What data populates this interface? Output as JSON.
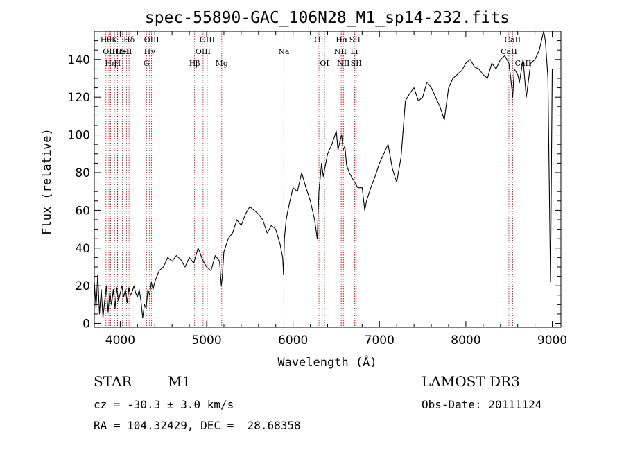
{
  "chart_data": {
    "type": "line",
    "title": "spec-55890-GAC_106N28_M1_sp14-232.fits",
    "xlabel": "Wavelength (Å)",
    "ylabel": "Flux (relative)",
    "xlim": [
      3700,
      9100
    ],
    "ylim": [
      -2,
      155
    ],
    "xticks": [
      4000,
      5000,
      6000,
      7000,
      8000,
      9000
    ],
    "yticks": [
      0,
      20,
      40,
      60,
      80,
      100,
      120,
      140
    ],
    "grid": false,
    "series": [
      {
        "name": "flux",
        "x": [
          3700,
          3720,
          3740,
          3760,
          3780,
          3800,
          3820,
          3840,
          3860,
          3880,
          3900,
          3920,
          3940,
          3960,
          3980,
          4000,
          4020,
          4040,
          4060,
          4080,
          4100,
          4120,
          4140,
          4160,
          4180,
          4200,
          4220,
          4240,
          4260,
          4280,
          4300,
          4320,
          4340,
          4360,
          4380,
          4400,
          4450,
          4500,
          4550,
          4600,
          4650,
          4700,
          4750,
          4800,
          4850,
          4870,
          4900,
          4920,
          4950,
          5000,
          5050,
          5100,
          5150,
          5170,
          5180,
          5200,
          5250,
          5300,
          5350,
          5400,
          5450,
          5500,
          5550,
          5600,
          5650,
          5700,
          5750,
          5800,
          5850,
          5880,
          5890,
          5900,
          5920,
          5950,
          6000,
          6050,
          6100,
          6150,
          6200,
          6250,
          6280,
          6300,
          6330,
          6350,
          6400,
          6450,
          6500,
          6520,
          6550,
          6563,
          6580,
          6600,
          6620,
          6650,
          6700,
          6750,
          6800,
          6830,
          6850,
          6900,
          6950,
          7000,
          7050,
          7100,
          7150,
          7200,
          7250,
          7300,
          7350,
          7400,
          7450,
          7500,
          7550,
          7600,
          7650,
          7700,
          7750,
          7800,
          7850,
          7900,
          7950,
          8000,
          8050,
          8100,
          8150,
          8200,
          8250,
          8300,
          8350,
          8400,
          8450,
          8498,
          8520,
          8542,
          8560,
          8600,
          8620,
          8662,
          8700,
          8750,
          8800,
          8850,
          8900,
          8920,
          8950,
          8980,
          9000
        ],
        "y": [
          22,
          8,
          26,
          5,
          18,
          3,
          12,
          20,
          6,
          16,
          10,
          18,
          8,
          19,
          12,
          16,
          20,
          14,
          18,
          11,
          19,
          15,
          17,
          20,
          16,
          14,
          18,
          12,
          3,
          10,
          8,
          18,
          15,
          22,
          18,
          22,
          28,
          30,
          35,
          33,
          36,
          34,
          30,
          35,
          32,
          35,
          40,
          38,
          34,
          30,
          28,
          36,
          33,
          20,
          24,
          38,
          45,
          48,
          55,
          52,
          58,
          62,
          60,
          58,
          55,
          48,
          52,
          50,
          42,
          35,
          26,
          45,
          55,
          62,
          72,
          70,
          80,
          72,
          65,
          55,
          45,
          70,
          85,
          78,
          90,
          95,
          102,
          92,
          98,
          100,
          92,
          94,
          84,
          80,
          76,
          72,
          72,
          60,
          65,
          72,
          78,
          85,
          90,
          95,
          82,
          75,
          88,
          118,
          122,
          125,
          118,
          120,
          128,
          125,
          120,
          115,
          108,
          125,
          130,
          132,
          134,
          138,
          140,
          136,
          135,
          132,
          130,
          138,
          135,
          140,
          142,
          138,
          130,
          120,
          135,
          132,
          128,
          140,
          120,
          138,
          140,
          145,
          155,
          150,
          130,
          22,
          135
        ]
      }
    ],
    "lines": [
      {
        "wl": 3835,
        "label": "Hθ",
        "row": 0
      },
      {
        "wl": 3869,
        "label": "OII",
        "row": 1
      },
      {
        "wl": 3889,
        "label": "Hη",
        "row": 2
      },
      {
        "wl": 3934,
        "label": "K",
        "row": 0
      },
      {
        "wl": 3968,
        "label": "H",
        "row": 2
      },
      {
        "wl": 3970,
        "label": "Hε",
        "row": 1
      },
      {
        "wl": 4026,
        "label": "HeI",
        "row": 1
      },
      {
        "wl": 4072,
        "label": "SII",
        "row": 1
      },
      {
        "wl": 4102,
        "label": "Hδ",
        "row": 0
      },
      {
        "wl": 4304,
        "label": "G",
        "row": 2
      },
      {
        "wl": 4340,
        "label": "Hγ",
        "row": 1
      },
      {
        "wl": 4363,
        "label": "OIII",
        "row": 0
      },
      {
        "wl": 4861,
        "label": "Hβ",
        "row": 2
      },
      {
        "wl": 4959,
        "label": "OIII",
        "row": 1
      },
      {
        "wl": 5007,
        "label": "OIII",
        "row": 0
      },
      {
        "wl": 5175,
        "label": "Mg",
        "row": 2
      },
      {
        "wl": 5893,
        "label": "Na",
        "row": 1
      },
      {
        "wl": 6300,
        "label": "OI",
        "row": 0
      },
      {
        "wl": 6364,
        "label": "OI",
        "row": 2
      },
      {
        "wl": 6548,
        "label": "NII",
        "row": 1
      },
      {
        "wl": 6563,
        "label": "Hα",
        "row": 0
      },
      {
        "wl": 6583,
        "label": "NII",
        "row": 2
      },
      {
        "wl": 6708,
        "label": "Li",
        "row": 1
      },
      {
        "wl": 6716,
        "label": "SII",
        "row": 0
      },
      {
        "wl": 6731,
        "label": "SII",
        "row": 2
      },
      {
        "wl": 8498,
        "label": "CaII",
        "row": 1
      },
      {
        "wl": 8542,
        "label": "CaII",
        "row": 0
      },
      {
        "wl": 8662,
        "label": "CaII",
        "row": 2
      }
    ]
  },
  "info": {
    "class": "STAR",
    "subclass": "M1",
    "survey": "LAMOST DR3",
    "cz": "cz = -30.3 ± 3.0 km/s",
    "obs_date": "Obs-Date: 20111124",
    "coords": "RA = 104.32429, DEC =  28.68358"
  }
}
